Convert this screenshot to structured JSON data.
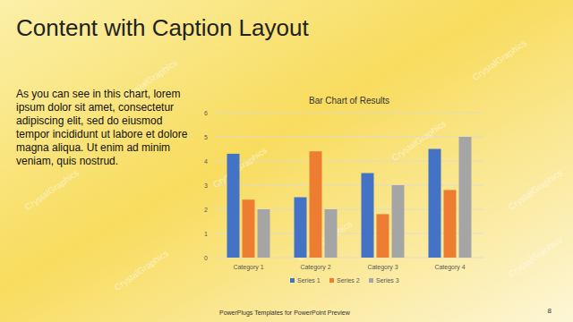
{
  "slide": {
    "title": "Content with Caption Layout",
    "caption": "As you can see in this chart, lorem ipsum dolor sit amet, consectetur adipiscing elit, sed do eiusmod tempor incididunt ut labore et dolore magna aliqua. Ut enim ad minim veniam, quis nostrud.",
    "footer": "PowerPlugs Templates for PowerPoint Preview",
    "page_number": "8",
    "watermark": "CrystalGraphics"
  },
  "chart_data": {
    "type": "bar",
    "title": "Bar Chart of Results",
    "categories": [
      "Category 1",
      "Category 2",
      "Category 3",
      "Category 4"
    ],
    "series": [
      {
        "name": "Series 1",
        "color": "#4472c4",
        "values": [
          4.3,
          2.5,
          3.5,
          4.5
        ]
      },
      {
        "name": "Series 2",
        "color": "#ed7d31",
        "values": [
          2.4,
          4.4,
          1.8,
          2.8
        ]
      },
      {
        "name": "Series 3",
        "color": "#a5a5a5",
        "values": [
          2,
          2,
          3,
          5
        ]
      }
    ],
    "ylim": [
      0,
      6
    ],
    "yticks": [
      0,
      1,
      2,
      3,
      4,
      5,
      6
    ],
    "grid": true,
    "legend": "bottom"
  }
}
